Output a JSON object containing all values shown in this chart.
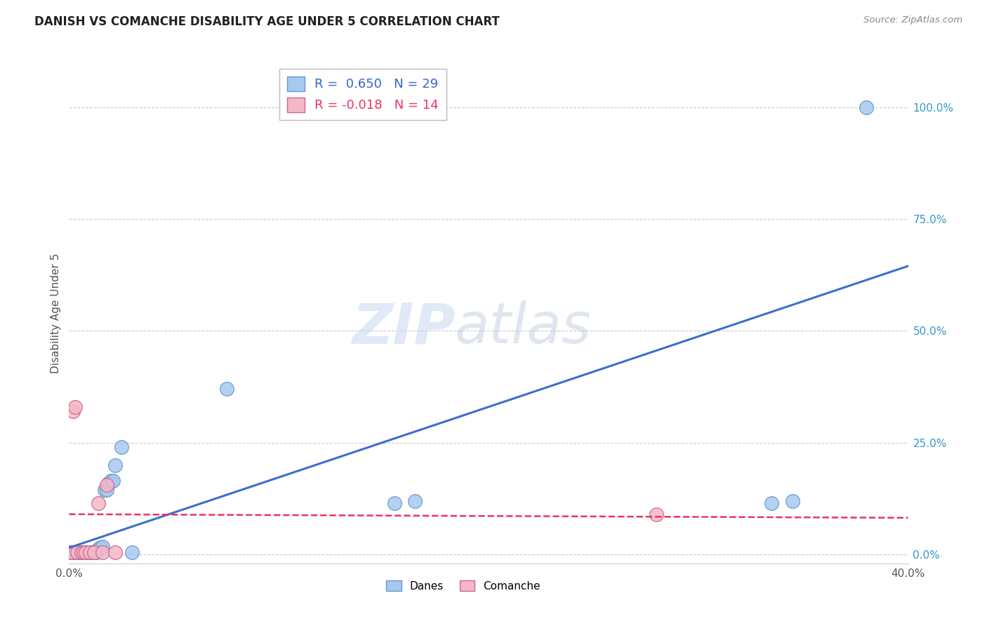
{
  "title": "DANISH VS COMANCHE DISABILITY AGE UNDER 5 CORRELATION CHART",
  "source": "Source: ZipAtlas.com",
  "ylabel": "Disability Age Under 5",
  "xlim": [
    0.0,
    0.4
  ],
  "ylim": [
    -0.02,
    1.1
  ],
  "ytick_values": [
    0.0,
    0.25,
    0.5,
    0.75,
    1.0
  ],
  "xtick_values": [
    0.0,
    0.05,
    0.1,
    0.15,
    0.2,
    0.25,
    0.3,
    0.35,
    0.4
  ],
  "xtick_labels": [
    "0.0%",
    "",
    "",
    "",
    "",
    "",
    "",
    "",
    "40.0%"
  ],
  "danes_color": "#A8C8F0",
  "danes_edge_color": "#6699CC",
  "comanche_color": "#F5B8C8",
  "comanche_edge_color": "#CC6688",
  "danes_line_color": "#3B6FCC",
  "comanche_line_color": "#E8365D",
  "danes_R": 0.65,
  "danes_N": 29,
  "comanche_R": -0.018,
  "comanche_N": 14,
  "legend_label_danes": "Danes",
  "legend_label_comanche": "Comanche",
  "danes_x": [
    0.001,
    0.002,
    0.003,
    0.004,
    0.005,
    0.006,
    0.007,
    0.008,
    0.009,
    0.01,
    0.012,
    0.013,
    0.014,
    0.015,
    0.016,
    0.017,
    0.018,
    0.019,
    0.02,
    0.021,
    0.022,
    0.025,
    0.03,
    0.075,
    0.155,
    0.165,
    0.335,
    0.345,
    0.38
  ],
  "danes_y": [
    0.005,
    0.005,
    0.005,
    0.005,
    0.005,
    0.005,
    0.005,
    0.005,
    0.005,
    0.005,
    0.005,
    0.005,
    0.013,
    0.016,
    0.017,
    0.145,
    0.145,
    0.16,
    0.165,
    0.165,
    0.2,
    0.24,
    0.005,
    0.37,
    0.115,
    0.12,
    0.115,
    0.12,
    1.0
  ],
  "comanche_x": [
    0.001,
    0.002,
    0.003,
    0.004,
    0.006,
    0.007,
    0.008,
    0.01,
    0.012,
    0.014,
    0.016,
    0.018,
    0.022,
    0.28
  ],
  "comanche_y": [
    0.005,
    0.32,
    0.33,
    0.005,
    0.005,
    0.005,
    0.005,
    0.005,
    0.005,
    0.115,
    0.005,
    0.155,
    0.005,
    0.09
  ],
  "danes_line_x": [
    0.0,
    0.4
  ],
  "danes_line_y": [
    0.015,
    0.645
  ],
  "comanche_line_x": [
    0.0,
    0.4
  ],
  "comanche_line_y": [
    0.09,
    0.082
  ]
}
